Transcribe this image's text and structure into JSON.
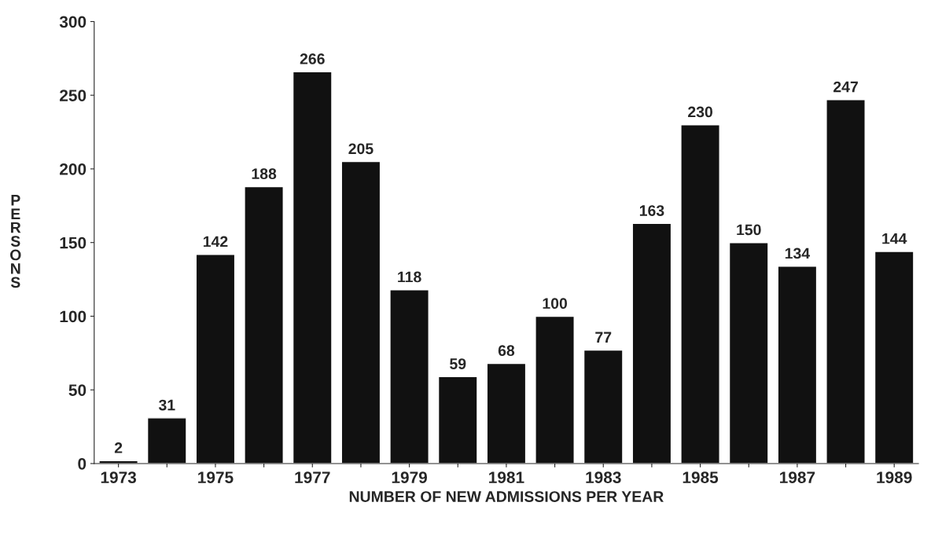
{
  "chart_data": {
    "type": "bar",
    "xlabel": "NUMBER OF NEW ADMISSIONS PER YEAR",
    "ylabel": "PERSONS",
    "categories": [
      "1973",
      null,
      "1975",
      null,
      "1977",
      null,
      "1979",
      null,
      "1981",
      null,
      "1983",
      null,
      "1985",
      null,
      "1987",
      null,
      "1989"
    ],
    "values": [
      2,
      31,
      142,
      188,
      266,
      205,
      118,
      59,
      68,
      100,
      77,
      163,
      230,
      150,
      134,
      247,
      144
    ],
    "color": "#111111",
    "data_labels": true,
    "ylim": [
      0,
      300
    ],
    "yticks": [
      0,
      50,
      100,
      150,
      200,
      250,
      300
    ],
    "grid": false,
    "legend": false
  }
}
